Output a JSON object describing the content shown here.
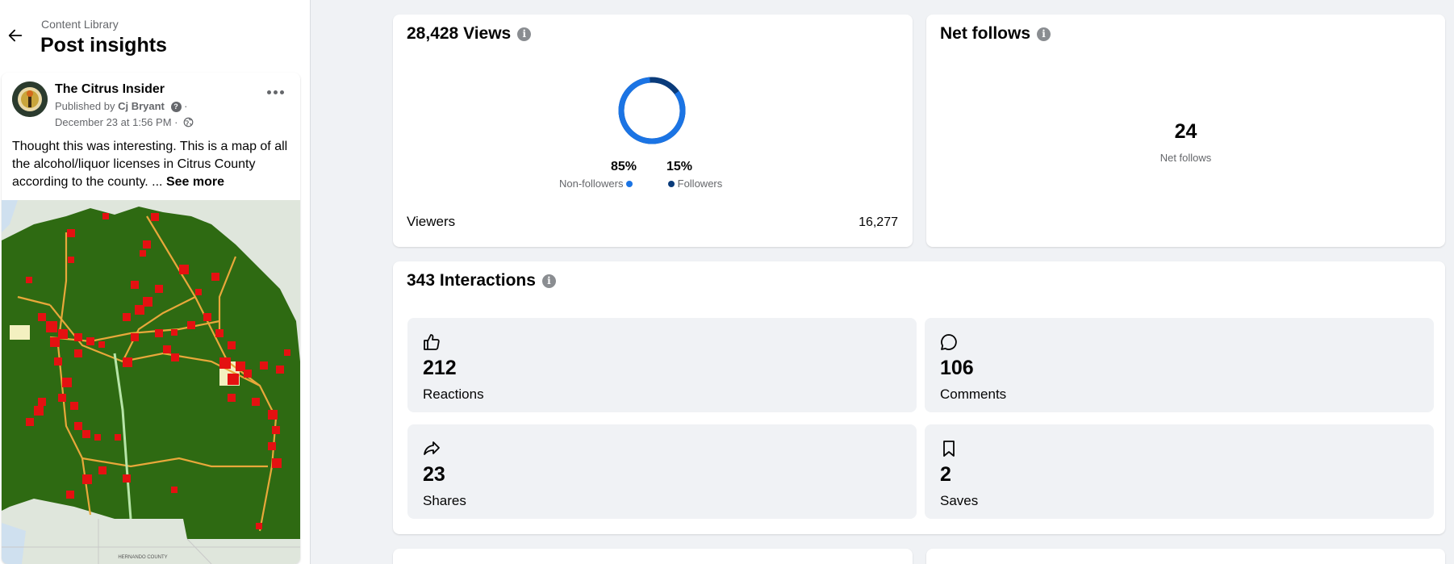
{
  "header": {
    "breadcrumb": "Content Library",
    "title": "Post insights"
  },
  "post": {
    "page_name": "The Citrus Insider",
    "published_by_prefix": "Published by",
    "published_by_name": "Cj Bryant",
    "date": "December 23 at 1:56 PM ·",
    "text": "Thought this was interesting. This is a map of all the alcohol/liquor licenses in Citrus County according to the county. ...",
    "see_more": "See more"
  },
  "views": {
    "title": "28,428 Views",
    "non_followers_pct": "85%",
    "followers_pct": "15%",
    "non_followers_label": "Non-followers",
    "followers_label": "Followers",
    "donut_fraction_non_followers": 0.85,
    "viewers_label": "Viewers",
    "viewers_value": "16,277",
    "colors": {
      "non_followers": "#1b74e4",
      "followers": "#0a3b7a"
    }
  },
  "follows": {
    "title": "Net follows",
    "value": "24",
    "label": "Net follows"
  },
  "interactions": {
    "title": "343 Interactions",
    "tiles": [
      {
        "icon": "thumbs-up-icon",
        "value": "212",
        "label": "Reactions"
      },
      {
        "icon": "comment-icon",
        "value": "106",
        "label": "Comments"
      },
      {
        "icon": "share-icon",
        "value": "23",
        "label": "Shares"
      },
      {
        "icon": "bookmark-icon",
        "value": "2",
        "label": "Saves"
      }
    ]
  },
  "map_labels": {
    "bottom_county": "HERNANDO COUNTY"
  }
}
